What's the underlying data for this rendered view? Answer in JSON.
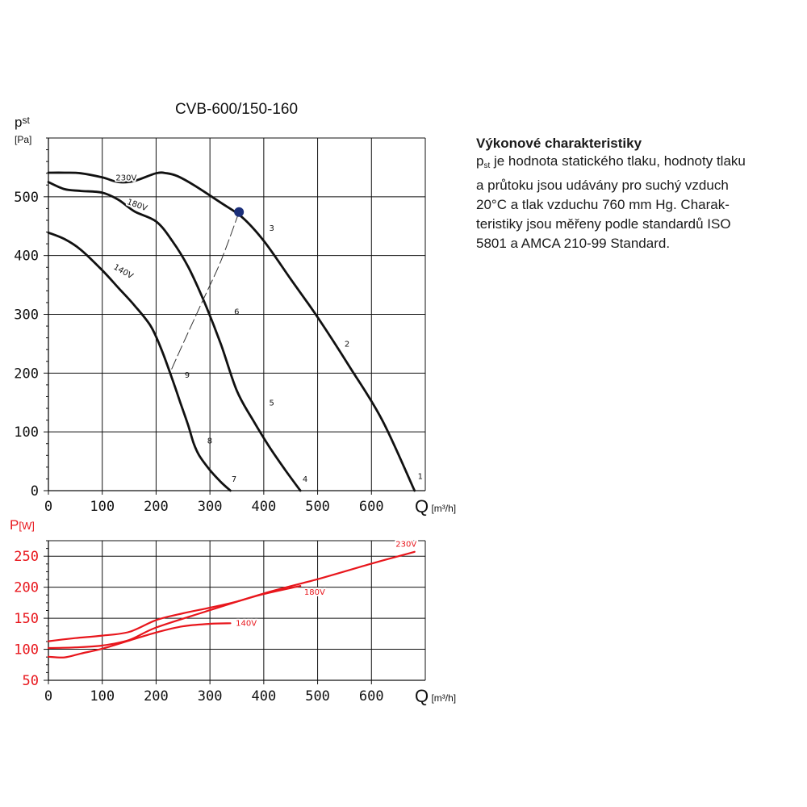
{
  "title": "CVB-600/150-160",
  "colors": {
    "pressure": "#111111",
    "power": "#e8161c",
    "operating_point": "#1b2f7a",
    "grid": "#111111",
    "text": "#111111"
  },
  "side_panel": {
    "heading": "Výkonové charakteristiky",
    "symbol": "p",
    "symbol_sub": "st",
    "lines": [
      " je hodnota statického tlaku, hodnoty tlaku",
      "a průtoku jsou udávány pro suchý vzduch",
      "20°C a tlak vzduchu 760 mm Hg. Charak-",
      "teristiky jsou měřeny podle standardů ISO",
      "5801 a AMCA 210-99 Standard."
    ]
  },
  "chart_data": [
    {
      "type": "line",
      "ylabel_symbol": "p",
      "ylabel_sub": "st",
      "yunit": "[Pa]",
      "xlabel": "Q",
      "xunit": "[m³/h]",
      "xlim": [
        0,
        700
      ],
      "ylim": [
        0,
        600
      ],
      "xticks": [
        0,
        100,
        200,
        300,
        400,
        500,
        600
      ],
      "yticks": [
        0,
        100,
        200,
        300,
        400,
        500
      ],
      "grid": true,
      "series": [
        {
          "name": "230V",
          "x": [
            0,
            30,
            60,
            100,
            130,
            160,
            200,
            220,
            240,
            270,
            320,
            360,
            400,
            450,
            500,
            560,
            620,
            680
          ],
          "y": [
            541,
            541,
            540,
            533,
            525,
            527,
            540,
            540,
            535,
            520,
            490,
            465,
            425,
            360,
            295,
            210,
            120,
            0
          ]
        },
        {
          "name": "180V",
          "x": [
            0,
            30,
            60,
            100,
            130,
            160,
            200,
            230,
            260,
            290,
            320,
            350,
            380,
            410,
            440,
            468
          ],
          "y": [
            525,
            513,
            510,
            507,
            495,
            475,
            458,
            425,
            380,
            320,
            250,
            170,
            120,
            75,
            35,
            0
          ]
        },
        {
          "name": "140V",
          "x": [
            0,
            30,
            60,
            100,
            130,
            160,
            190,
            210,
            230,
            245,
            260,
            270,
            280,
            300,
            320,
            338
          ],
          "y": [
            439,
            428,
            410,
            375,
            345,
            315,
            280,
            240,
            190,
            150,
            110,
            80,
            60,
            35,
            15,
            0
          ]
        }
      ],
      "operating_point": {
        "x": 354,
        "y": 474
      },
      "system_curve": {
        "x": [
          354,
          320,
          285,
          250,
          228
        ],
        "y": [
          474,
          390,
          320,
          250,
          205
        ]
      },
      "point_labels": [
        {
          "text": "1",
          "x": 686,
          "y": 20
        },
        {
          "text": "2",
          "x": 550,
          "y": 245
        },
        {
          "text": "3",
          "x": 410,
          "y": 442
        },
        {
          "text": "4",
          "x": 472,
          "y": 15
        },
        {
          "text": "5",
          "x": 410,
          "y": 145
        },
        {
          "text": "6",
          "x": 345,
          "y": 300
        },
        {
          "text": "7",
          "x": 340,
          "y": 15
        },
        {
          "text": "8",
          "x": 295,
          "y": 80
        },
        {
          "text": "9",
          "x": 253,
          "y": 192
        }
      ],
      "series_label_positions": [
        {
          "series": "230V",
          "x": 125,
          "y": 528,
          "rot": 0
        },
        {
          "series": "180V",
          "x": 145,
          "y": 488,
          "rot": 20
        },
        {
          "series": "140V",
          "x": 120,
          "y": 378,
          "rot": 30
        }
      ]
    },
    {
      "type": "line",
      "ylabel_symbol": "P",
      "yunit": "[W]",
      "xlabel": "Q",
      "xunit": "[m³/h]",
      "xlim": [
        0,
        700
      ],
      "ylim": [
        50,
        275
      ],
      "xticks": [
        0,
        100,
        200,
        300,
        400,
        500,
        600
      ],
      "yticks": [
        50,
        100,
        150,
        200,
        250
      ],
      "grid": true,
      "series": [
        {
          "name": "230V",
          "x": [
            0,
            50,
            100,
            150,
            200,
            300,
            400,
            500,
            600,
            680
          ],
          "y": [
            102,
            103,
            106,
            115,
            135,
            163,
            190,
            213,
            238,
            257
          ]
        },
        {
          "name": "180V",
          "x": [
            0,
            50,
            100,
            150,
            200,
            250,
            300,
            350,
            400,
            468
          ],
          "y": [
            113,
            118,
            122,
            128,
            147,
            158,
            167,
            177,
            189,
            202
          ]
        },
        {
          "name": "140V",
          "x": [
            0,
            30,
            60,
            100,
            150,
            200,
            250,
            300,
            338
          ],
          "y": [
            88,
            87,
            93,
            101,
            114,
            127,
            137,
            141,
            142
          ]
        }
      ],
      "series_label_positions": [
        {
          "series": "230V",
          "x": 645,
          "y": 265,
          "rot": 0
        },
        {
          "series": "180V",
          "x": 475,
          "y": 188,
          "rot": 0
        },
        {
          "series": "140V",
          "x": 348,
          "y": 138,
          "rot": 0
        }
      ]
    }
  ]
}
